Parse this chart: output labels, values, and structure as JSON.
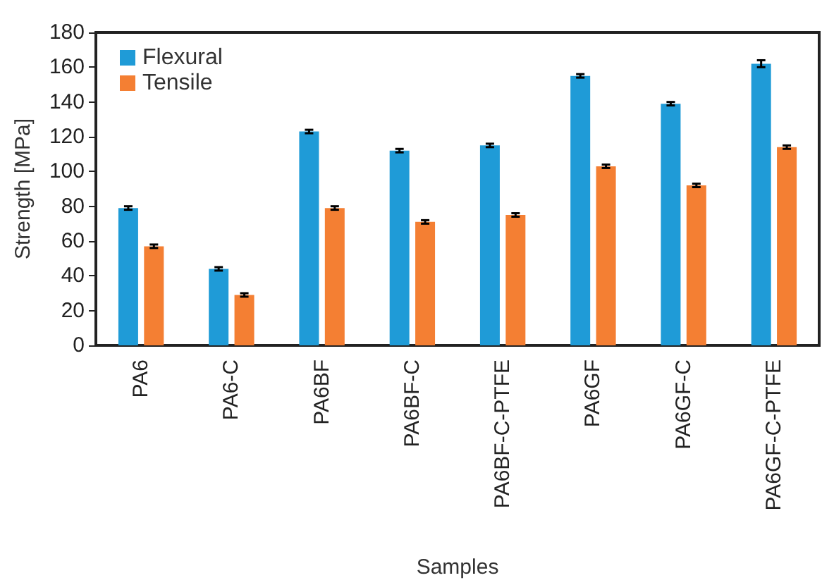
{
  "chart_data": {
    "type": "bar",
    "xlabel": "Samples",
    "ylabel": "Strength [MPa]",
    "categories": [
      "PA6",
      "PA6-C",
      "PA6BF",
      "PA6BF-C",
      "PA6BF-C-PTFE",
      "PA6GF",
      "PA6GF-C",
      "PA6GF-C-PTFE"
    ],
    "series": [
      {
        "name": "Flexural",
        "color": "#1f9bd7",
        "values": [
          79,
          44,
          123,
          112,
          115,
          155,
          139,
          162
        ],
        "errors": [
          1,
          1,
          1,
          1,
          1,
          1,
          1,
          2
        ]
      },
      {
        "name": "Tensile",
        "color": "#f47f33",
        "values": [
          57,
          29,
          79,
          71,
          75,
          103,
          92,
          114
        ],
        "errors": [
          1,
          1,
          1,
          1,
          1,
          1,
          1,
          1
        ]
      }
    ],
    "ylim": [
      0,
      180
    ],
    "yticks": [
      0,
      20,
      40,
      60,
      80,
      100,
      120,
      140,
      160,
      180
    ],
    "grid": false,
    "legend": "top left"
  }
}
